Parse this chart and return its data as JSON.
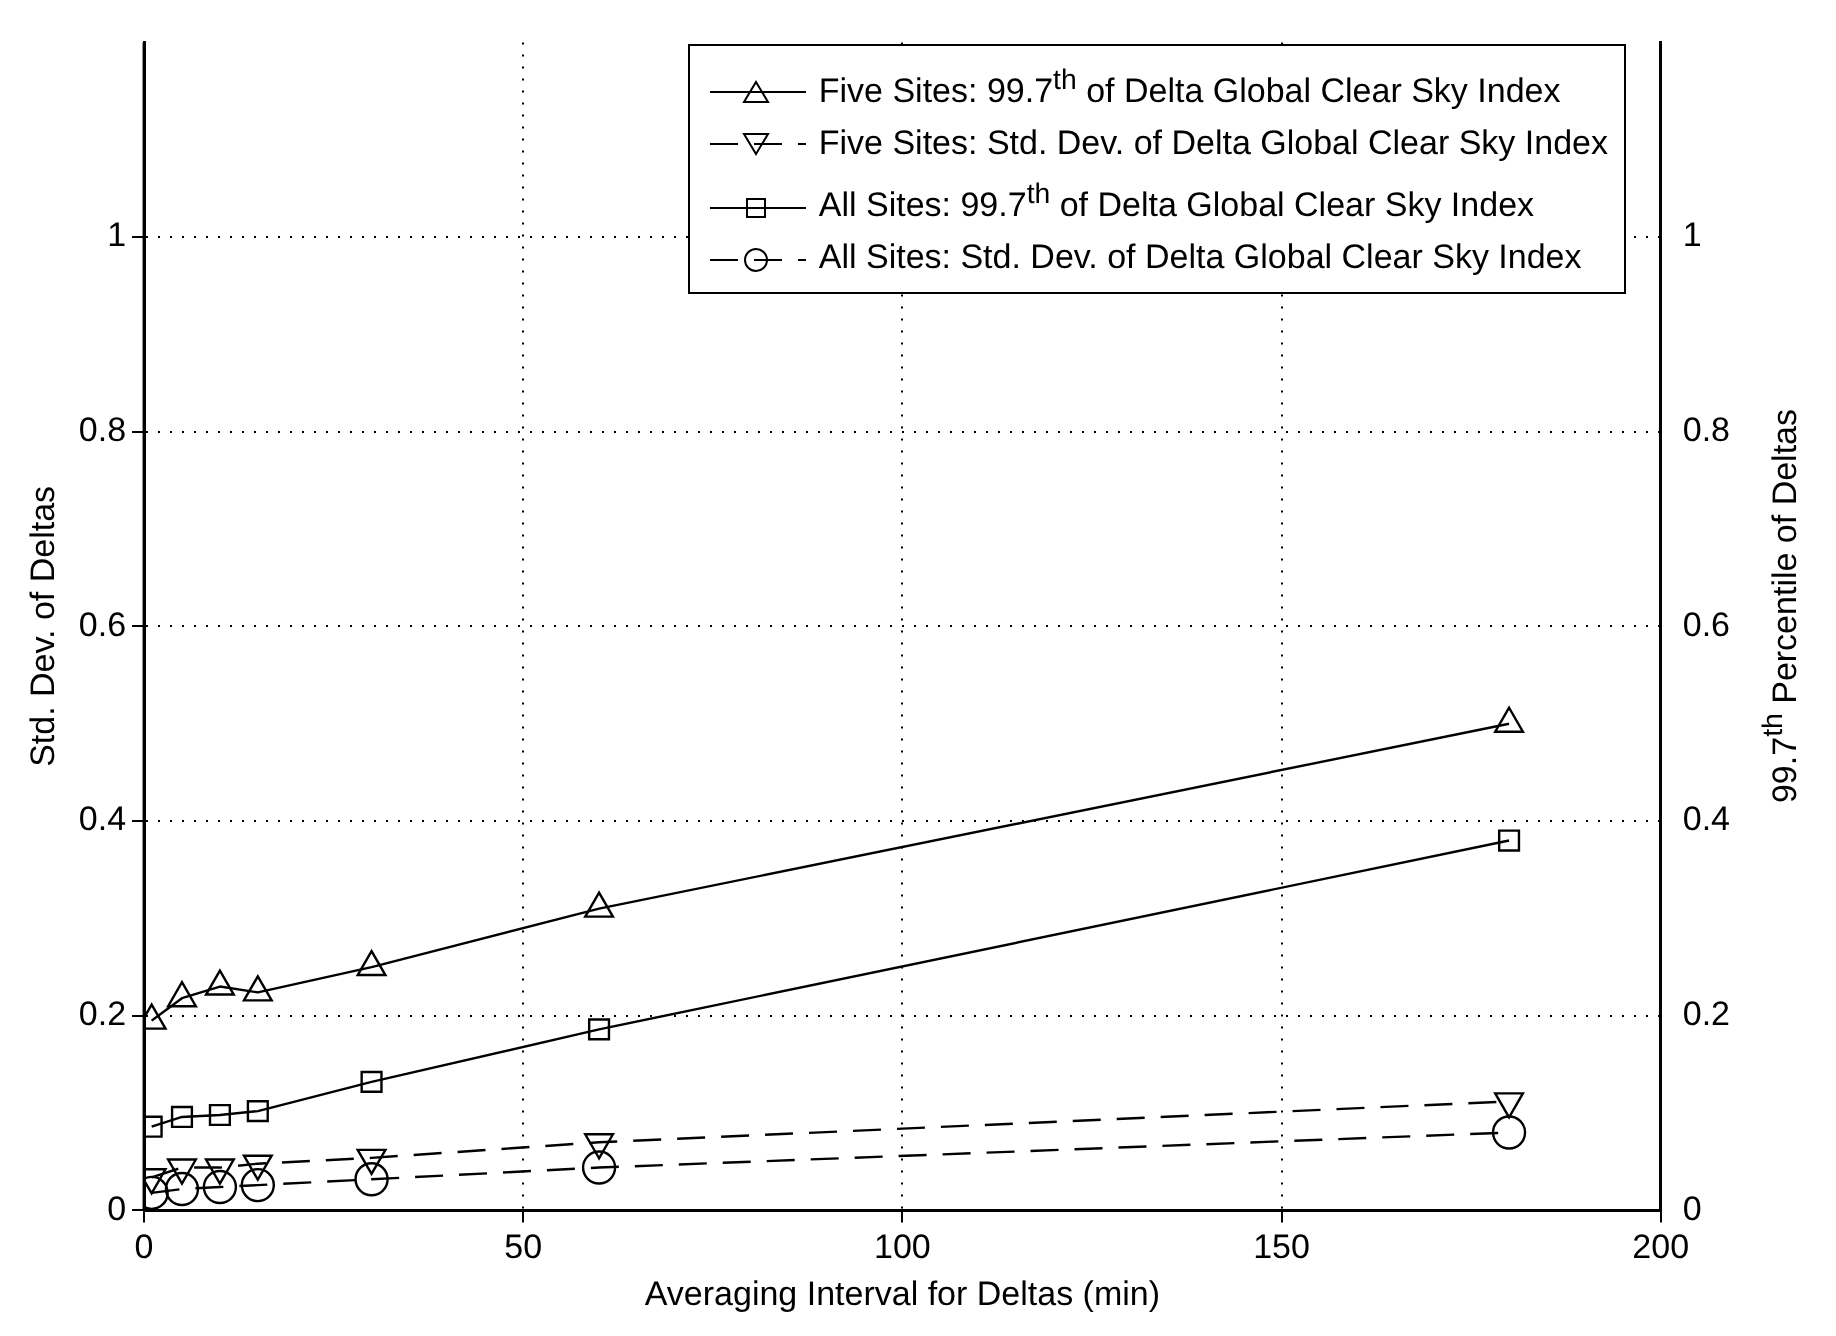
{
  "chart_data": {
    "type": "line",
    "xlabel": "Averaging Interval for Deltas (min)",
    "ylabel": "Std. Dev. of Deltas",
    "y2label": "99.7$^{th}$ Percentile of Deltas",
    "x": [
      1,
      5,
      10,
      15,
      30,
      60,
      180
    ],
    "xlim": [
      0,
      200
    ],
    "xticks": [
      0,
      50,
      100,
      150,
      200
    ],
    "ylim": [
      0,
      1.2
    ],
    "yticks": [
      0,
      0.2,
      0.4,
      0.6,
      0.8,
      1
    ],
    "y2lim": [
      0,
      1.2
    ],
    "y2ticks": [
      0,
      0.2,
      0.4,
      0.6,
      0.8,
      1
    ],
    "grid": true,
    "legend": "top right",
    "series": [
      {
        "name": "Five Sites: 99.7$^{th}$ of Delta Global Clear Sky Index",
        "color": "#000000",
        "marker": "triangle",
        "line_style": "solid",
        "values": [
          0.195,
          0.218,
          0.23,
          0.224,
          0.25,
          0.31,
          0.5
        ]
      },
      {
        "name": "Five Sites: Std. Dev. of Delta Global Clear Sky Index",
        "color": "#000000",
        "marker": "triangle_down",
        "line_style": "dashed",
        "values": [
          0.034,
          0.044,
          0.044,
          0.048,
          0.054,
          0.07,
          0.112
        ]
      },
      {
        "name": "All Sites: 99.7$^{th}$ of Delta Global Clear Sky Index",
        "color": "#000000",
        "marker": "square",
        "line_style": "solid",
        "values": [
          0.086,
          0.096,
          0.098,
          0.102,
          0.132,
          0.186,
          0.38
        ]
      },
      {
        "name": "All Sites: Std. Dev. of Delta Global Clear Sky Index",
        "color": "#000000",
        "marker": "circle",
        "line_style": "dashed",
        "values": [
          0.018,
          0.022,
          0.024,
          0.026,
          0.032,
          0.044,
          0.08
        ]
      }
    ]
  }
}
